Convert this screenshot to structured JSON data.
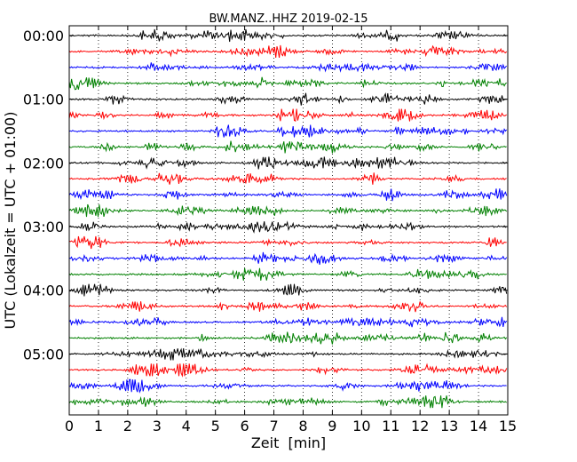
{
  "chart_data": {
    "type": "line",
    "title": "BW.MANZ..HHZ 2019-02-15",
    "xlabel": "Zeit  [min]",
    "ylabel": "UTC (Lokalzeit = UTC + 01:00)",
    "xlim": [
      0,
      15
    ],
    "x_ticks": [
      "0",
      "1",
      "2",
      "3",
      "4",
      "5",
      "6",
      "7",
      "8",
      "9",
      "10",
      "11",
      "12",
      "13",
      "14",
      "15"
    ],
    "y_ticks": [
      {
        "label": "00:00",
        "row": 0
      },
      {
        "label": "01:00",
        "row": 4
      },
      {
        "label": "02:00",
        "row": 8
      },
      {
        "label": "03:00",
        "row": 12
      },
      {
        "label": "04:00",
        "row": 16
      },
      {
        "label": "05:00",
        "row": 20
      }
    ],
    "row_minutes": 15,
    "rows": 24,
    "row_colors": [
      "#000000",
      "#ff0000",
      "#0000ff",
      "#008000"
    ],
    "grid": "vertical-dotted"
  }
}
